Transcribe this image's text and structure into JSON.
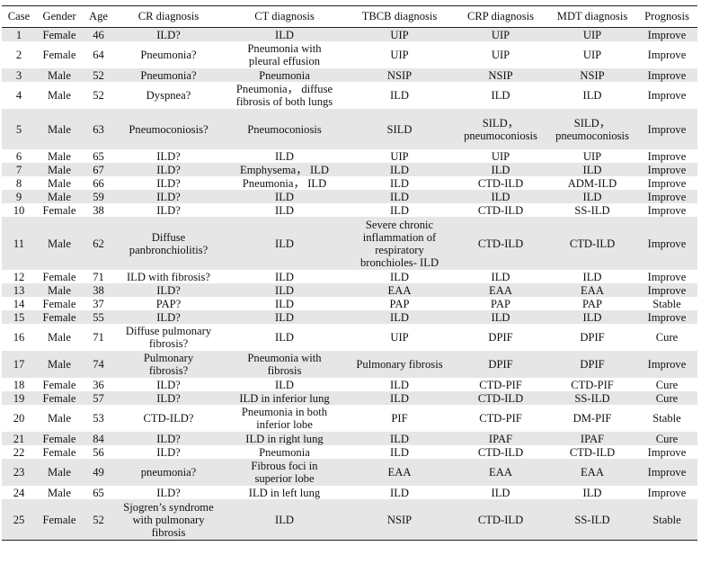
{
  "table": {
    "headers": [
      "Case",
      "Gender",
      "Age",
      "CR diagnosis",
      "CT diagnosis",
      "TBCB diagnosis",
      "CRP diagnosis",
      "MDT diagnosis",
      "Prognosis"
    ],
    "rows": [
      {
        "h": 1,
        "cells": [
          [
            "1"
          ],
          [
            "Female"
          ],
          [
            "46"
          ],
          [
            "ILD?"
          ],
          [
            "ILD"
          ],
          [
            "UIP"
          ],
          [
            "UIP"
          ],
          [
            "UIP"
          ],
          [
            "Improve"
          ]
        ]
      },
      {
        "h": 2,
        "cells": [
          [
            "2"
          ],
          [
            "Female"
          ],
          [
            "64"
          ],
          [
            "Pneumonia?"
          ],
          [
            "Pneumonia with",
            "pleural effusion"
          ],
          [
            "UIP"
          ],
          [
            "UIP"
          ],
          [
            "UIP"
          ],
          [
            "Improve"
          ]
        ]
      },
      {
        "h": 1,
        "cells": [
          [
            "3"
          ],
          [
            "Male"
          ],
          [
            "52"
          ],
          [
            "Pneumonia?"
          ],
          [
            "Pneumonia"
          ],
          [
            "NSIP"
          ],
          [
            "NSIP"
          ],
          [
            "NSIP"
          ],
          [
            "Improve"
          ]
        ]
      },
      {
        "h": 2,
        "cells": [
          [
            "4"
          ],
          [
            "Male"
          ],
          [
            "52"
          ],
          [
            "Dyspnea?"
          ],
          [
            "Pneumonia， diffuse",
            "fibrosis of both lungs"
          ],
          [
            "ILD"
          ],
          [
            "ILD"
          ],
          [
            "ILD"
          ],
          [
            "Improve"
          ]
        ]
      },
      {
        "h": 3,
        "cells": [
          [
            "5"
          ],
          [
            "Male"
          ],
          [
            "63"
          ],
          [
            "Pneumoconiosis?"
          ],
          [
            "Pneumoconiosis"
          ],
          [
            "SILD"
          ],
          [
            "SILD，",
            "pneumoconiosis"
          ],
          [
            "SILD，",
            "pneumoconiosis"
          ],
          [
            "Improve"
          ]
        ]
      },
      {
        "h": 1,
        "cells": [
          [
            "6"
          ],
          [
            "Male"
          ],
          [
            "65"
          ],
          [
            "ILD?"
          ],
          [
            "ILD"
          ],
          [
            "UIP"
          ],
          [
            "UIP"
          ],
          [
            "UIP"
          ],
          [
            "Improve"
          ]
        ]
      },
      {
        "h": 1,
        "cells": [
          [
            "7"
          ],
          [
            "Male"
          ],
          [
            "67"
          ],
          [
            "ILD?"
          ],
          [
            "Emphysema， ILD"
          ],
          [
            "ILD"
          ],
          [
            "ILD"
          ],
          [
            "ILD"
          ],
          [
            "Improve"
          ]
        ]
      },
      {
        "h": 1,
        "cells": [
          [
            "8"
          ],
          [
            "Male"
          ],
          [
            "66"
          ],
          [
            "ILD?"
          ],
          [
            "Pneumonia， ILD"
          ],
          [
            "ILD"
          ],
          [
            "CTD-ILD"
          ],
          [
            "ADM-ILD"
          ],
          [
            "Improve"
          ]
        ]
      },
      {
        "h": 1,
        "cells": [
          [
            "9"
          ],
          [
            "Male"
          ],
          [
            "59"
          ],
          [
            "ILD?"
          ],
          [
            "ILD"
          ],
          [
            "ILD"
          ],
          [
            "ILD"
          ],
          [
            "ILD"
          ],
          [
            "Improve"
          ]
        ]
      },
      {
        "h": 1,
        "cells": [
          [
            "10"
          ],
          [
            "Female"
          ],
          [
            "38"
          ],
          [
            "ILD?"
          ],
          [
            "ILD"
          ],
          [
            "ILD"
          ],
          [
            "CTD-ILD"
          ],
          [
            "SS-ILD"
          ],
          [
            "Improve"
          ]
        ]
      },
      {
        "h": 4,
        "cells": [
          [
            "11"
          ],
          [
            "Male"
          ],
          [
            "62"
          ],
          [
            "Diffuse",
            "panbronchiolitis?"
          ],
          [
            "ILD"
          ],
          [
            "Severe chronic",
            "inflammation of",
            "respiratory",
            "bronchioles- ILD"
          ],
          [
            "CTD-ILD"
          ],
          [
            "CTD-ILD"
          ],
          [
            "Improve"
          ]
        ]
      },
      {
        "h": 1,
        "cells": [
          [
            "12"
          ],
          [
            "Female"
          ],
          [
            "71"
          ],
          [
            "ILD with fibrosis?"
          ],
          [
            "ILD"
          ],
          [
            "ILD"
          ],
          [
            "ILD"
          ],
          [
            "ILD"
          ],
          [
            "Improve"
          ]
        ]
      },
      {
        "h": 1,
        "cells": [
          [
            "13"
          ],
          [
            "Male"
          ],
          [
            "38"
          ],
          [
            "ILD?"
          ],
          [
            "ILD"
          ],
          [
            "EAA"
          ],
          [
            "EAA"
          ],
          [
            "EAA"
          ],
          [
            "Improve"
          ]
        ]
      },
      {
        "h": 1,
        "cells": [
          [
            "14"
          ],
          [
            "Female"
          ],
          [
            "37"
          ],
          [
            "PAP?"
          ],
          [
            "ILD"
          ],
          [
            "PAP"
          ],
          [
            "PAP"
          ],
          [
            "PAP"
          ],
          [
            "Stable"
          ]
        ]
      },
      {
        "h": 1,
        "cells": [
          [
            "15"
          ],
          [
            "Female"
          ],
          [
            "55"
          ],
          [
            "ILD?"
          ],
          [
            "ILD"
          ],
          [
            "ILD"
          ],
          [
            "ILD"
          ],
          [
            "ILD"
          ],
          [
            "Improve"
          ]
        ]
      },
      {
        "h": 2,
        "cells": [
          [
            "16"
          ],
          [
            "Male"
          ],
          [
            "71"
          ],
          [
            "Diffuse pulmonary",
            "fibrosis?"
          ],
          [
            "ILD"
          ],
          [
            "UIP"
          ],
          [
            "DPIF"
          ],
          [
            "DPIF"
          ],
          [
            "Cure"
          ]
        ]
      },
      {
        "h": 2,
        "cells": [
          [
            "17"
          ],
          [
            "Male"
          ],
          [
            "74"
          ],
          [
            "Pulmonary",
            "fibrosis?"
          ],
          [
            "Pneumonia with",
            "fibrosis"
          ],
          [
            "Pulmonary fibrosis"
          ],
          [
            "DPIF"
          ],
          [
            "DPIF"
          ],
          [
            "Improve"
          ]
        ]
      },
      {
        "h": 1,
        "cells": [
          [
            "18"
          ],
          [
            "Female"
          ],
          [
            "36"
          ],
          [
            "ILD?"
          ],
          [
            "ILD"
          ],
          [
            "ILD"
          ],
          [
            "CTD-PIF"
          ],
          [
            "CTD-PIF"
          ],
          [
            "Cure"
          ]
        ]
      },
      {
        "h": 1,
        "cells": [
          [
            "19"
          ],
          [
            "Female"
          ],
          [
            "57"
          ],
          [
            "ILD?"
          ],
          [
            "ILD in inferior lung"
          ],
          [
            "ILD"
          ],
          [
            "CTD-ILD"
          ],
          [
            "SS-ILD"
          ],
          [
            "Cure"
          ]
        ]
      },
      {
        "h": 2,
        "cells": [
          [
            "20"
          ],
          [
            "Male"
          ],
          [
            "53"
          ],
          [
            "CTD-ILD?"
          ],
          [
            "Pneumonia in both",
            "inferior lobe"
          ],
          [
            "PIF"
          ],
          [
            "CTD-PIF"
          ],
          [
            "DM-PIF"
          ],
          [
            "Stable"
          ]
        ]
      },
      {
        "h": 1,
        "cells": [
          [
            "21"
          ],
          [
            "Female"
          ],
          [
            "84"
          ],
          [
            "ILD?"
          ],
          [
            "ILD in right lung"
          ],
          [
            "ILD"
          ],
          [
            "IPAF"
          ],
          [
            "IPAF"
          ],
          [
            "Cure"
          ]
        ]
      },
      {
        "h": 1,
        "cells": [
          [
            "22"
          ],
          [
            "Female"
          ],
          [
            "56"
          ],
          [
            "ILD?"
          ],
          [
            "Pneumonia"
          ],
          [
            "ILD"
          ],
          [
            "CTD-ILD"
          ],
          [
            "CTD-ILD"
          ],
          [
            "Improve"
          ]
        ]
      },
      {
        "h": 2,
        "cells": [
          [
            "23"
          ],
          [
            "Male"
          ],
          [
            "49"
          ],
          [
            "pneumonia?"
          ],
          [
            "Fibrous foci in",
            "superior lobe"
          ],
          [
            "EAA"
          ],
          [
            "EAA"
          ],
          [
            "EAA"
          ],
          [
            "Improve"
          ]
        ]
      },
      {
        "h": 1,
        "cells": [
          [
            "24"
          ],
          [
            "Male"
          ],
          [
            "65"
          ],
          [
            "ILD?"
          ],
          [
            "ILD in left lung"
          ],
          [
            "ILD"
          ],
          [
            "ILD"
          ],
          [
            "ILD"
          ],
          [
            "Improve"
          ]
        ]
      },
      {
        "h": 3,
        "cells": [
          [
            "25"
          ],
          [
            "Female"
          ],
          [
            "52"
          ],
          [
            "Sjogren’s syndrome",
            "with pulmonary",
            "fibrosis"
          ],
          [
            "ILD"
          ],
          [
            "NSIP"
          ],
          [
            "CTD-ILD"
          ],
          [
            "SS-ILD"
          ],
          [
            "Stable"
          ]
        ]
      }
    ]
  }
}
